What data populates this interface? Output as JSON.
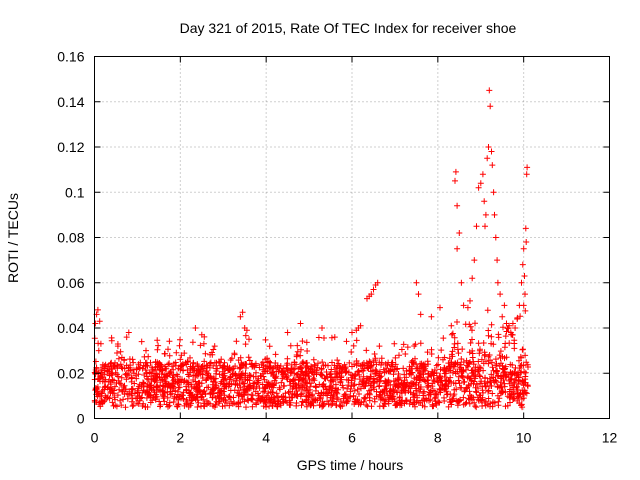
{
  "chart_data": {
    "type": "scatter",
    "title": "Day 321 of 2015, Rate Of TEC Index for receiver shoe",
    "xlabel": "GPS time / hours",
    "ylabel": "ROTI / TECUs",
    "xlim": [
      0,
      12
    ],
    "ylim": [
      0,
      0.16
    ],
    "x_ticks": [
      0,
      2,
      4,
      6,
      8,
      10,
      12
    ],
    "x_tick_labels": [
      "0",
      "2",
      "4",
      "6",
      "8",
      "10",
      "12"
    ],
    "y_ticks": [
      0,
      0.02,
      0.04,
      0.06,
      0.08,
      0.1,
      0.12,
      0.14,
      0.16
    ],
    "y_tick_labels": [
      "0",
      "0.02",
      "0.04",
      "0.06",
      "0.08",
      "0.1",
      "0.12",
      "0.14",
      "0.16"
    ],
    "grid": true,
    "marker": "+",
    "color": "#ff0000",
    "background_band": {
      "x_range": [
        0,
        10.1
      ],
      "y_base_range": [
        0.005,
        0.025
      ],
      "count": 2200
    },
    "series": [
      {
        "name": "ROTI",
        "points": [
          [
            0.02,
            0.042
          ],
          [
            0.05,
            0.046
          ],
          [
            0.08,
            0.048
          ],
          [
            0.12,
            0.043
          ],
          [
            0.1,
            0.03
          ],
          [
            0.15,
            0.033
          ],
          [
            0.8,
            0.038
          ],
          [
            0.75,
            0.036
          ],
          [
            1.1,
            0.034
          ],
          [
            1.2,
            0.03
          ],
          [
            2.35,
            0.04
          ],
          [
            2.5,
            0.037
          ],
          [
            2.55,
            0.033
          ],
          [
            2.8,
            0.032
          ],
          [
            3.4,
            0.045
          ],
          [
            3.45,
            0.047
          ],
          [
            3.5,
            0.04
          ],
          [
            3.55,
            0.039
          ],
          [
            3.6,
            0.035
          ],
          [
            4.5,
            0.038
          ],
          [
            4.8,
            0.042
          ],
          [
            5.3,
            0.04
          ],
          [
            5.6,
            0.036
          ],
          [
            6.0,
            0.038
          ],
          [
            6.1,
            0.039
          ],
          [
            6.2,
            0.041
          ],
          [
            6.15,
            0.04
          ],
          [
            6.4,
            0.054
          ],
          [
            6.45,
            0.055
          ],
          [
            6.5,
            0.057
          ],
          [
            6.55,
            0.059
          ],
          [
            6.6,
            0.06
          ],
          [
            6.35,
            0.053
          ],
          [
            7.5,
            0.06
          ],
          [
            7.55,
            0.055
          ],
          [
            7.6,
            0.046
          ],
          [
            7.85,
            0.045
          ],
          [
            8.05,
            0.049
          ],
          [
            8.4,
            0.105
          ],
          [
            8.42,
            0.109
          ],
          [
            8.45,
            0.094
          ],
          [
            8.5,
            0.082
          ],
          [
            8.55,
            0.06
          ],
          [
            8.6,
            0.05
          ],
          [
            8.45,
            0.075
          ],
          [
            8.7,
            0.049
          ],
          [
            8.75,
            0.052
          ],
          [
            8.8,
            0.062
          ],
          [
            8.85,
            0.07
          ],
          [
            8.9,
            0.085
          ],
          [
            8.95,
            0.102
          ],
          [
            9.0,
            0.104
          ],
          [
            9.05,
            0.108
          ],
          [
            9.08,
            0.096
          ],
          [
            9.1,
            0.085
          ],
          [
            9.12,
            0.09
          ],
          [
            9.15,
            0.115
          ],
          [
            9.18,
            0.12
          ],
          [
            9.2,
            0.145
          ],
          [
            9.22,
            0.138
          ],
          [
            9.25,
            0.118
          ],
          [
            9.27,
            0.112
          ],
          [
            9.3,
            0.1
          ],
          [
            9.32,
            0.09
          ],
          [
            9.35,
            0.08
          ],
          [
            9.38,
            0.07
          ],
          [
            9.4,
            0.06
          ],
          [
            9.45,
            0.055
          ],
          [
            9.5,
            0.045
          ],
          [
            9.55,
            0.05
          ],
          [
            9.6,
            0.042
          ],
          [
            9.65,
            0.04
          ],
          [
            9.7,
            0.038
          ],
          [
            9.75,
            0.042
          ],
          [
            9.8,
            0.04
          ],
          [
            9.85,
            0.044
          ],
          [
            9.9,
            0.05
          ],
          [
            9.95,
            0.06
          ],
          [
            9.98,
            0.068
          ],
          [
            10.0,
            0.075
          ],
          [
            10.02,
            0.063
          ],
          [
            10.05,
            0.084
          ],
          [
            10.07,
            0.108
          ],
          [
            10.08,
            0.111
          ],
          [
            10.06,
            0.078
          ],
          [
            10.03,
            0.055
          ],
          [
            10.0,
            0.05
          ]
        ]
      }
    ]
  }
}
